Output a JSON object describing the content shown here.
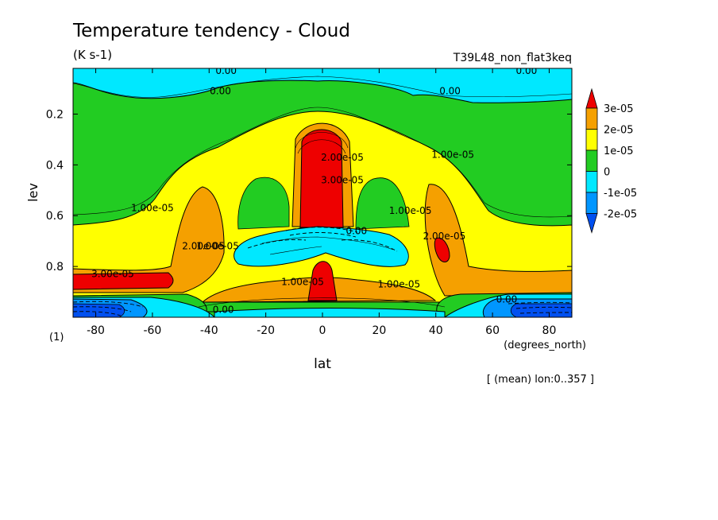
{
  "chart_data": {
    "type": "heatmap",
    "title": "Temperature tendency - Cloud",
    "units": "(K s-1)",
    "run_label": "T39L48_non_flat3keq",
    "xlabel": "lat",
    "x_unit": "(degrees_north)",
    "ylabel": "lev",
    "y_unit": "(1)",
    "averaging_note": "[ (mean) lon:0..357 ]",
    "xlim": [
      -88,
      88
    ],
    "ylim": [
      1.0,
      0.02
    ],
    "x_ticks": [
      "-80",
      "-60",
      "-40",
      "-20",
      "0",
      "20",
      "40",
      "60",
      "80"
    ],
    "y_ticks": [
      "0.2",
      "0.4",
      "0.6",
      "0.8"
    ],
    "legend": {
      "position": "right",
      "labels": [
        "3e-05",
        "2e-05",
        "1e-05",
        "0",
        "-1e-05",
        "-2e-05"
      ],
      "bins": [
        {
          "lo": 3e-05,
          "color": "#ee0000"
        },
        {
          "lo": 2e-05,
          "hi": 3e-05,
          "color": "#f5a000"
        },
        {
          "lo": 1e-05,
          "hi": 2e-05,
          "color": "#ffff00"
        },
        {
          "lo": 0,
          "hi": 1e-05,
          "color": "#22cc22"
        },
        {
          "lo": -1e-05,
          "hi": 0,
          "color": "#00e8ff"
        },
        {
          "lo": -2e-05,
          "hi": -1e-05,
          "color": "#0096ff"
        },
        {
          "hi": -2e-05,
          "color": "#0050f0"
        }
      ]
    },
    "contour_labels": [
      {
        "text": "0.00",
        "lat": -34,
        "lev": 0.03
      },
      {
        "text": "0.00",
        "lat": 72,
        "lev": 0.03
      },
      {
        "text": "0.00",
        "lat": -36,
        "lev": 0.11
      },
      {
        "text": "0.00",
        "lat": 45,
        "lev": 0.11
      },
      {
        "text": "0.00",
        "lat": 12,
        "lev": 0.66
      },
      {
        "text": "0.00",
        "lat": -35,
        "lev": 0.97
      },
      {
        "text": "0.00",
        "lat": 65,
        "lev": 0.93
      },
      {
        "text": "1.00e-05",
        "lat": 46,
        "lev": 0.36
      },
      {
        "text": "1.00e-05",
        "lat": -60,
        "lev": 0.57
      },
      {
        "text": "1.00e-05",
        "lat": 31,
        "lev": 0.58
      },
      {
        "text": "1.00e-05",
        "lat": -37,
        "lev": 0.72
      },
      {
        "text": "1.00e-05",
        "lat": -7,
        "lev": 0.86
      },
      {
        "text": "1.00e-05",
        "lat": 27,
        "lev": 0.87
      },
      {
        "text": "2.00e-05",
        "lat": 7,
        "lev": 0.37
      },
      {
        "text": "2.00e-05",
        "lat": 43,
        "lev": 0.68
      },
      {
        "text": "2.00e-05",
        "lat": -42,
        "lev": 0.72
      },
      {
        "text": "3.00e-05",
        "lat": -74,
        "lev": 0.83
      },
      {
        "text": "3.00e-05",
        "lat": 7,
        "lev": 0.46
      }
    ]
  }
}
